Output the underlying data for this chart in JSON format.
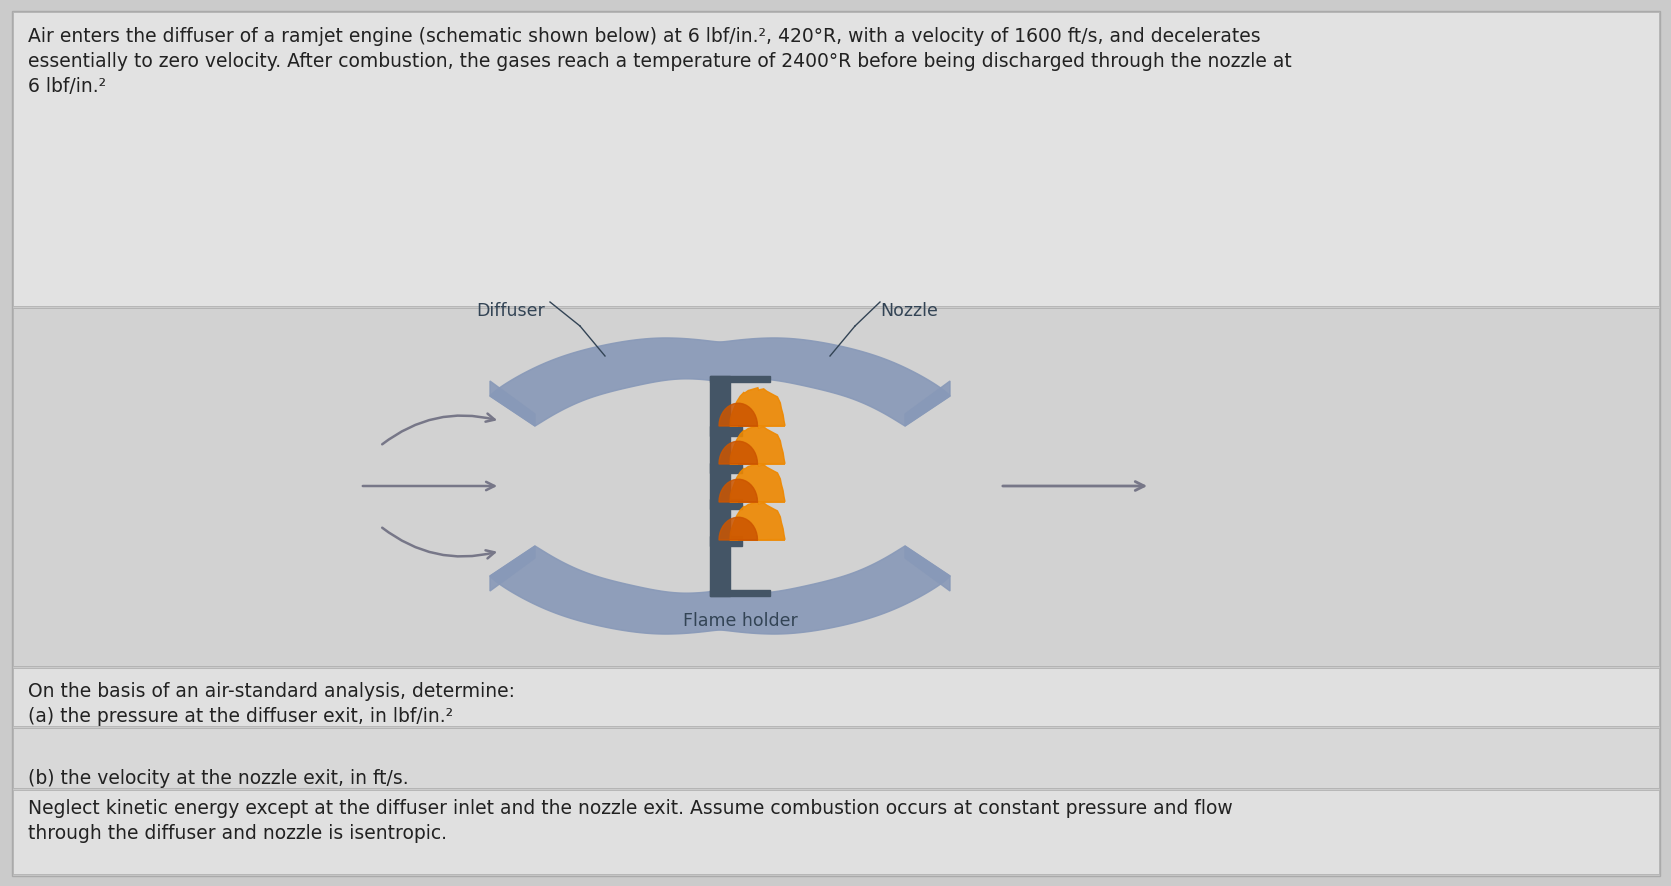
{
  "bg_color": "#cbcbcb",
  "panel_top_color": "#e2e2e2",
  "panel_mid_color": "#d2d2d2",
  "panel_bot1_color": "#e0e0e0",
  "panel_bot2_color": "#d8d8d8",
  "panel_bot3_color": "#e0e0e0",
  "text_color": "#222222",
  "title_line1": "Air enters the diffuser of a ramjet engine (schematic shown below) at 6 lbf/in.², 420°R, with a velocity of 1600 ft/s, and decelerates",
  "title_line2": "essentially to zero velocity. After combustion, the gases reach a temperature of 2400°R before being discharged through the nozzle at",
  "title_line3": "6 lbf/in.²",
  "q1_text": "On the basis of an air-standard analysis, determine:",
  "q2_text": "(a) the pressure at the diffuser exit, in lbf/in.²",
  "q3_text": "(b) the velocity at the nozzle exit, in ft/s.",
  "q4_line1": "Neglect kinetic energy except at the diffuser inlet and the nozzle exit. Assume combustion occurs at constant pressure and flow",
  "q4_line2": "through the diffuser and nozzle is isentropic.",
  "diffuser_label": "Diffuser",
  "nozzle_label": "Nozzle",
  "flame_holder_label": "Flame holder",
  "engine_color": "#8899b8",
  "engine_shadow": "#6677a0",
  "flame_orange": "#cc5500",
  "flame_yellow": "#ee8800",
  "arrow_color": "#777788",
  "line_color": "#445566",
  "label_color": "#334455"
}
